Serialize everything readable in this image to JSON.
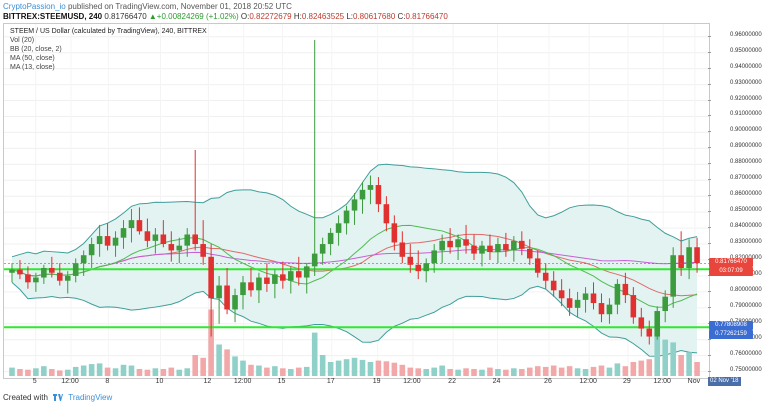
{
  "header": {
    "author": "CryptoPassion_io",
    "published": "published on TradingView.com, November 01, 2018 20:52 UTC"
  },
  "ticker": {
    "symbol": "BITTREX:STEEMUSD, 240",
    "last": "0.81766470",
    "change": "+0.00824269 (+1.02%)",
    "o_label": "O:",
    "o": "0.82272679",
    "h_label": "H:",
    "h": "0.82463525",
    "l_label": "L:",
    "l": "0.80617680",
    "c_label": "C:",
    "c": "0.81766470"
  },
  "legend": {
    "title": "STEEM / US Dollar (calculated by TradingView), 240, BITTREX",
    "items": [
      "Vol (20)",
      "BB (20, close, 2)",
      "MA (50, close)",
      "MA (13, close)"
    ]
  },
  "price_labels": {
    "last": "0.81766470",
    "countdown": "03:07:09",
    "support_upper": "0.77808908",
    "support_lower": "0.77262159",
    "last_color": "#e8453c",
    "countdown_color": "#e8453c",
    "support_color": "#3b6cd1"
  },
  "date_badge": "02 Nov '18",
  "footer": {
    "created": "Created with",
    "brand": "TradingView"
  },
  "chart_data": {
    "type": "candlestick",
    "y_ticks": [
      "0.96000000",
      "0.95000000",
      "0.94000000",
      "0.93000000",
      "0.92000000",
      "0.91000000",
      "0.90000000",
      "0.89000000",
      "0.88000000",
      "0.87000000",
      "0.86000000",
      "0.85000000",
      "0.84000000",
      "0.83000000",
      "0.82000000",
      "0.81000000",
      "0.80000000",
      "0.79000000",
      "0.78000000",
      "0.77000000",
      "0.76000000",
      "0.75000000"
    ],
    "y_range": [
      0.746,
      0.968
    ],
    "x_ticks": [
      "5",
      "12:00",
      "8",
      "10",
      "12",
      "12:00",
      "15",
      "17",
      "19",
      "12:00",
      "22",
      "24",
      "26",
      "12:00",
      "29",
      "12:00",
      "Nov"
    ],
    "horizontal_lines": [
      0.8142,
      0.7778
    ],
    "horizontal_line_color": "#2fe82f",
    "colors": {
      "up": "#3c9b3c",
      "down": "#e03030",
      "bb_fill": "#e3f3f2",
      "bb_line": "#3f9e9a",
      "ma50": "#c85fd6",
      "ma13": "#4fbb4f",
      "vol_up": "#8fd0c8",
      "vol_down": "#f2a8a8"
    },
    "candles": [
      [
        0.812,
        0.818,
        0.806,
        0.814
      ],
      [
        0.814,
        0.82,
        0.808,
        0.811
      ],
      [
        0.811,
        0.816,
        0.802,
        0.806
      ],
      [
        0.806,
        0.812,
        0.8,
        0.809
      ],
      [
        0.809,
        0.817,
        0.805,
        0.815
      ],
      [
        0.815,
        0.822,
        0.809,
        0.812
      ],
      [
        0.812,
        0.818,
        0.804,
        0.807
      ],
      [
        0.807,
        0.813,
        0.799,
        0.81
      ],
      [
        0.81,
        0.821,
        0.806,
        0.818
      ],
      [
        0.818,
        0.826,
        0.81,
        0.823
      ],
      [
        0.823,
        0.834,
        0.815,
        0.83
      ],
      [
        0.83,
        0.842,
        0.822,
        0.835
      ],
      [
        0.835,
        0.843,
        0.826,
        0.829
      ],
      [
        0.829,
        0.838,
        0.822,
        0.834
      ],
      [
        0.834,
        0.845,
        0.827,
        0.84
      ],
      [
        0.84,
        0.852,
        0.831,
        0.845
      ],
      [
        0.845,
        0.853,
        0.836,
        0.838
      ],
      [
        0.838,
        0.846,
        0.828,
        0.832
      ],
      [
        0.832,
        0.84,
        0.824,
        0.836
      ],
      [
        0.836,
        0.845,
        0.828,
        0.83
      ],
      [
        0.83,
        0.838,
        0.819,
        0.826
      ],
      [
        0.826,
        0.834,
        0.818,
        0.829
      ],
      [
        0.829,
        0.84,
        0.822,
        0.836
      ],
      [
        0.836,
        0.889,
        0.826,
        0.83
      ],
      [
        0.83,
        0.845,
        0.817,
        0.822
      ],
      [
        0.822,
        0.83,
        0.772,
        0.796
      ],
      [
        0.796,
        0.81,
        0.78,
        0.804
      ],
      [
        0.804,
        0.815,
        0.786,
        0.789
      ],
      [
        0.789,
        0.802,
        0.781,
        0.798
      ],
      [
        0.798,
        0.81,
        0.789,
        0.806
      ],
      [
        0.806,
        0.815,
        0.797,
        0.801
      ],
      [
        0.801,
        0.812,
        0.793,
        0.809
      ],
      [
        0.809,
        0.818,
        0.8,
        0.805
      ],
      [
        0.805,
        0.814,
        0.796,
        0.811
      ],
      [
        0.811,
        0.819,
        0.802,
        0.807
      ],
      [
        0.807,
        0.816,
        0.799,
        0.813
      ],
      [
        0.813,
        0.822,
        0.804,
        0.809
      ],
      [
        0.809,
        0.818,
        0.799,
        0.816
      ],
      [
        0.816,
        0.958,
        0.81,
        0.824
      ],
      [
        0.824,
        0.834,
        0.817,
        0.83
      ],
      [
        0.83,
        0.84,
        0.823,
        0.837
      ],
      [
        0.837,
        0.848,
        0.829,
        0.843
      ],
      [
        0.843,
        0.854,
        0.836,
        0.851
      ],
      [
        0.851,
        0.862,
        0.842,
        0.858
      ],
      [
        0.858,
        0.869,
        0.849,
        0.864
      ],
      [
        0.864,
        0.873,
        0.855,
        0.867
      ],
      [
        0.867,
        0.872,
        0.85,
        0.855
      ],
      [
        0.855,
        0.86,
        0.838,
        0.843
      ],
      [
        0.843,
        0.848,
        0.826,
        0.831
      ],
      [
        0.831,
        0.838,
        0.818,
        0.822
      ],
      [
        0.822,
        0.83,
        0.812,
        0.817
      ],
      [
        0.817,
        0.826,
        0.808,
        0.813
      ],
      [
        0.813,
        0.821,
        0.806,
        0.818
      ],
      [
        0.818,
        0.83,
        0.812,
        0.826
      ],
      [
        0.826,
        0.836,
        0.818,
        0.832
      ],
      [
        0.832,
        0.84,
        0.824,
        0.828
      ],
      [
        0.828,
        0.836,
        0.82,
        0.833
      ],
      [
        0.833,
        0.842,
        0.824,
        0.829
      ],
      [
        0.829,
        0.836,
        0.82,
        0.824
      ],
      [
        0.824,
        0.832,
        0.816,
        0.829
      ],
      [
        0.829,
        0.836,
        0.82,
        0.825
      ],
      [
        0.825,
        0.834,
        0.818,
        0.83
      ],
      [
        0.83,
        0.837,
        0.822,
        0.826
      ],
      [
        0.826,
        0.835,
        0.819,
        0.832
      ],
      [
        0.832,
        0.838,
        0.823,
        0.827
      ],
      [
        0.827,
        0.833,
        0.817,
        0.821
      ],
      [
        0.821,
        0.826,
        0.809,
        0.812
      ],
      [
        0.812,
        0.818,
        0.802,
        0.807
      ],
      [
        0.807,
        0.813,
        0.797,
        0.801
      ],
      [
        0.801,
        0.808,
        0.791,
        0.796
      ],
      [
        0.796,
        0.802,
        0.785,
        0.79
      ],
      [
        0.79,
        0.8,
        0.784,
        0.795
      ],
      [
        0.795,
        0.803,
        0.787,
        0.799
      ],
      [
        0.799,
        0.806,
        0.789,
        0.793
      ],
      [
        0.793,
        0.799,
        0.781,
        0.786
      ],
      [
        0.786,
        0.796,
        0.78,
        0.792
      ],
      [
        0.792,
        0.808,
        0.786,
        0.805
      ],
      [
        0.805,
        0.812,
        0.793,
        0.798
      ],
      [
        0.798,
        0.803,
        0.78,
        0.784
      ],
      [
        0.784,
        0.79,
        0.772,
        0.777
      ],
      [
        0.777,
        0.782,
        0.767,
        0.772
      ],
      [
        0.772,
        0.791,
        0.77,
        0.788
      ],
      [
        0.788,
        0.801,
        0.781,
        0.797
      ],
      [
        0.797,
        0.828,
        0.79,
        0.823
      ],
      [
        0.823,
        0.838,
        0.81,
        0.815
      ],
      [
        0.815,
        0.833,
        0.808,
        0.828
      ],
      [
        0.828,
        0.834,
        0.812,
        0.818
      ]
    ],
    "volume": [
      0.12,
      0.1,
      0.09,
      0.11,
      0.14,
      0.1,
      0.08,
      0.09,
      0.13,
      0.15,
      0.17,
      0.18,
      0.12,
      0.11,
      0.16,
      0.15,
      0.1,
      0.09,
      0.11,
      0.1,
      0.12,
      0.09,
      0.11,
      0.3,
      0.26,
      0.95,
      0.45,
      0.38,
      0.28,
      0.22,
      0.16,
      0.15,
      0.12,
      0.14,
      0.11,
      0.1,
      0.12,
      0.13,
      0.62,
      0.3,
      0.2,
      0.22,
      0.24,
      0.26,
      0.23,
      0.2,
      0.22,
      0.21,
      0.19,
      0.16,
      0.12,
      0.11,
      0.1,
      0.12,
      0.15,
      0.1,
      0.09,
      0.11,
      0.1,
      0.09,
      0.12,
      0.1,
      0.09,
      0.11,
      0.1,
      0.12,
      0.14,
      0.13,
      0.15,
      0.12,
      0.14,
      0.11,
      0.1,
      0.13,
      0.15,
      0.12,
      0.18,
      0.14,
      0.2,
      0.22,
      0.24,
      0.6,
      0.52,
      0.48,
      0.3,
      0.34,
      0.2
    ]
  }
}
